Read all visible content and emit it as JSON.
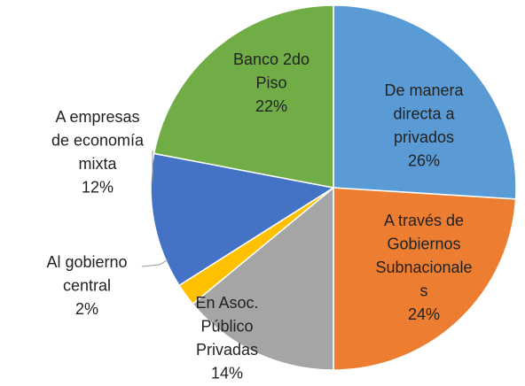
{
  "chart_data": {
    "type": "pie",
    "categories": [
      "De manera\ndirecta a\nprivados",
      "A través de\nGobiernos\nSubnacionale\ns",
      "En Asoc.\nPúblico\nPrivadas",
      "Al gobierno\ncentral",
      "A empresas\nde economía\nmixta",
      "Banco 2do\nPiso"
    ],
    "values": [
      26,
      24,
      14,
      2,
      12,
      22
    ],
    "value_labels": [
      "26%",
      "24%",
      "14%",
      "2%",
      "12%",
      "22%"
    ],
    "colors": [
      "#5b9bd5",
      "#ed7d31",
      "#a5a5a5",
      "#ffc000",
      "#4472c4",
      "#70ad47"
    ]
  }
}
